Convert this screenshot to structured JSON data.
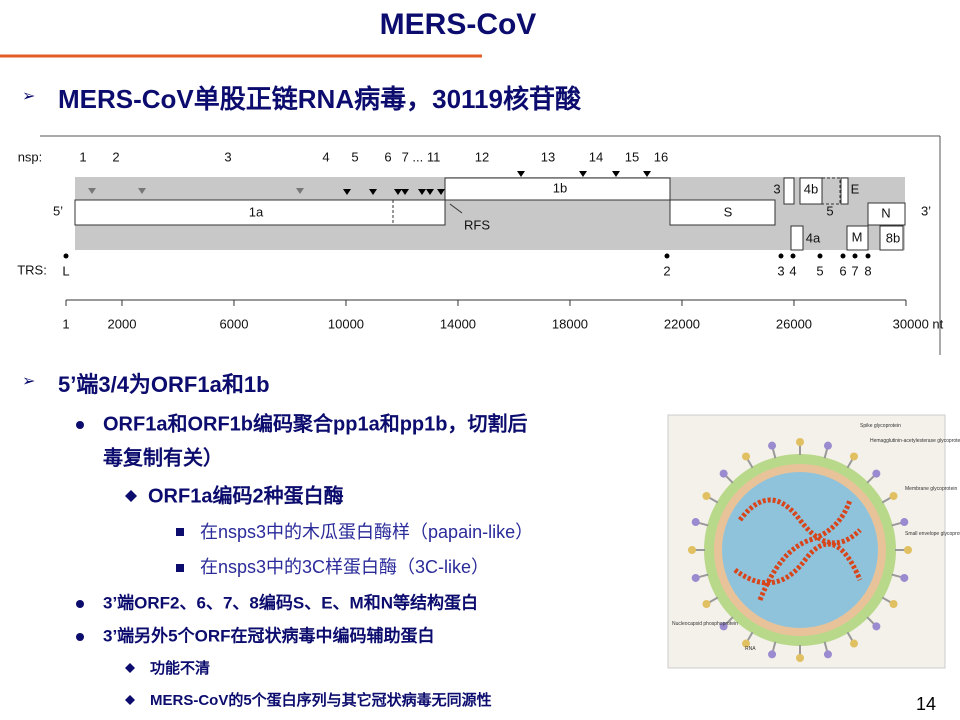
{
  "title": "MERS-CoV",
  "point1": "MERS-CoV单股正链RNA病毒，30119核苷酸",
  "genome": {
    "nsp_label": "nsp:",
    "nsp": [
      "1",
      "2",
      "3",
      "4",
      "5",
      "6",
      "7 ... 11",
      "12",
      "13",
      "14",
      "15",
      "16"
    ],
    "five_prime": "5’",
    "three_prime": "3’",
    "rfs": "RFS",
    "genes": [
      "1a",
      "1b",
      "S",
      "3",
      "4b",
      "5",
      "E",
      "4a",
      "M",
      "N",
      "8b"
    ],
    "trs_label": "TRS:",
    "trs": [
      "L",
      "2",
      "3",
      "4",
      "5",
      "6",
      "7",
      "8"
    ],
    "scale": [
      1,
      2000,
      6000,
      10000,
      14000,
      18000,
      22000,
      26000,
      {
        "value": 30000,
        "label": "30000 nt"
      }
    ]
  },
  "point2": "5’端3/4为ORF1a和1b",
  "sub1": {
    "line1": "ORF1a和ORF1b编码聚合pp1a和pp1b，切割后",
    "line2": "毒复制有关）"
  },
  "sub1a": "ORF1a编码2种蛋白酶",
  "sub1a_items": [
    "在nsps3中的木瓜蛋白酶样（papain-like）",
    "在nsps3中的3C样蛋白酶（3C-like）"
  ],
  "sub2": "3’端ORF2、6、7、8编码S、E、M和N等结构蛋白",
  "sub3": "3’端另外5个ORF在冠状病毒中编码辅助蛋白",
  "sub3_items": [
    "功能不清",
    "MERS-CoV的5个蛋白序列与其它冠状病毒无同源性"
  ],
  "figure": {
    "labels": [
      "Spike glycoprotein",
      "Hemagglutinin-acetylesterase glycoprotein",
      "Membrane glycoprotein",
      "Small envelope glycoprotein",
      "Nucleocapsid phosphoprotein",
      "RNA"
    ]
  },
  "page_number": "14"
}
